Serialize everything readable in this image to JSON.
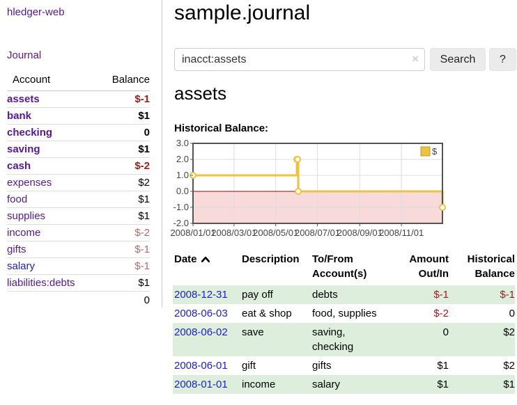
{
  "colors": {
    "accent_purple": "#551a8b",
    "link_blue": "#1d1dcb",
    "negative_strong": "#9b1c1c",
    "negative_muted": "#b46a6a",
    "row_stripe_green": "#ddeedd",
    "chart_series_gold": "#edc240",
    "chart_negative_fill": "#f9dada",
    "chart_zero_line": "#a00000"
  },
  "sidebar": {
    "brand": "hledger-web",
    "journal_link": "Journal",
    "accounts_table": {
      "headers": {
        "account": "Account",
        "balance": "Balance"
      },
      "rows": [
        {
          "name": "assets",
          "level": 1,
          "bold": true,
          "balance": "$-1"
        },
        {
          "name": "bank",
          "level": 2,
          "bold": true,
          "balance": "$1"
        },
        {
          "name": "checking",
          "level": 3,
          "bold": true,
          "balance": "0"
        },
        {
          "name": "saving",
          "level": 3,
          "bold": true,
          "balance": "$1"
        },
        {
          "name": "cash",
          "level": 2,
          "bold": true,
          "balance": "$-2"
        },
        {
          "name": "expenses",
          "level": 1,
          "bold": false,
          "balance": "$2"
        },
        {
          "name": "food",
          "level": 2,
          "bold": false,
          "balance": "$1"
        },
        {
          "name": "supplies",
          "level": 2,
          "bold": false,
          "balance": "$1"
        },
        {
          "name": "income",
          "level": 1,
          "bold": false,
          "balance": "$-2"
        },
        {
          "name": "gifts",
          "level": 2,
          "bold": false,
          "balance": "$-1"
        },
        {
          "name": "salary",
          "level": 2,
          "bold": false,
          "balance": "$-1",
          "link_color": "blue"
        },
        {
          "name": "liabilities:debts",
          "level": 1,
          "bold": false,
          "balance": "$1"
        }
      ],
      "total": "0"
    }
  },
  "header": {
    "title": "sample.journal"
  },
  "search": {
    "value": "inacct:assets",
    "clear_icon": "×",
    "button_label": "Search",
    "help_label": "?"
  },
  "account_page": {
    "title": "assets",
    "chart_label": "Historical Balance:"
  },
  "chart_data": {
    "type": "line",
    "step": true,
    "title": "Historical Balance",
    "x_type": "date",
    "series": [
      {
        "name": "$",
        "color": "#edc240",
        "points": [
          {
            "date": "2008-01-01",
            "day": 0,
            "value": 1
          },
          {
            "date": "2008-06-01",
            "day": 152,
            "value": 2
          },
          {
            "date": "2008-06-02",
            "day": 153,
            "value": 2
          },
          {
            "date": "2008-06-03",
            "day": 154,
            "value": 0
          },
          {
            "date": "2008-12-31",
            "day": 365,
            "value": -1
          }
        ]
      }
    ],
    "xlim_days": [
      0,
      365
    ],
    "ylim": [
      -2,
      3
    ],
    "y_ticks": [
      "3.0",
      "2.0",
      "1.0",
      "0.0",
      "-1.0",
      "-2.0"
    ],
    "y_tick_values": [
      3,
      2,
      1,
      0,
      -1,
      -2
    ],
    "x_ticks": [
      {
        "label": "2008/01/01",
        "day": 0
      },
      {
        "label": "2008/03/01",
        "day": 60
      },
      {
        "label": "2008/05/01",
        "day": 121
      },
      {
        "label": "2008/07/01",
        "day": 182
      },
      {
        "label": "2008/09/01",
        "day": 244
      },
      {
        "label": "2008/11/01",
        "day": 305
      }
    ],
    "legend": {
      "label": "$",
      "position": "top-right"
    },
    "grid": true,
    "negative_region_fill": "#f9dada",
    "zero_line_color": "#a00000"
  },
  "register": {
    "headers": {
      "date": "Date",
      "description": "Description",
      "accounts_line1": "To/From",
      "accounts_line2": "Account(s)",
      "amount_line1": "Amount",
      "amount_line2": "Out/In",
      "balance_line1": "Historical",
      "balance_line2": "Balance"
    },
    "rows": [
      {
        "date": "2008-12-31",
        "description": "pay off",
        "accounts": "debts",
        "amount": "$-1",
        "balance": "$-1"
      },
      {
        "date": "2008-06-03",
        "description": "eat & shop",
        "accounts": "food, supplies",
        "amount": "$-2",
        "balance": "0"
      },
      {
        "date": "2008-06-02",
        "description": "save",
        "accounts": "saving, checking",
        "amount": "0",
        "balance": "$2"
      },
      {
        "date": "2008-06-01",
        "description": "gift",
        "accounts": "gifts",
        "amount": "$1",
        "balance": "$2"
      },
      {
        "date": "2008-01-01",
        "description": "income",
        "accounts": "salary",
        "amount": "$1",
        "balance": "$1"
      }
    ]
  }
}
